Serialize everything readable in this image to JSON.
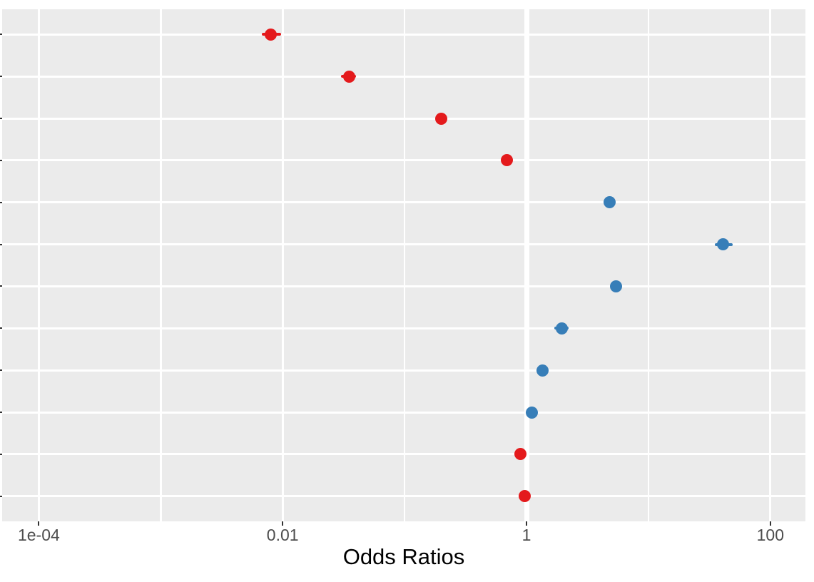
{
  "chart_data": {
    "type": "scatter",
    "subtype": "forest-plot-odds-ratios",
    "title": "",
    "xlabel": "Odds Ratios",
    "ylabel": "",
    "x_scale": "log10",
    "x_range": [
      5e-05,
      190
    ],
    "x_tick_values": [
      0.0001,
      0.01,
      1,
      100
    ],
    "x_tick_labels": [
      "1e-04",
      "0.01",
      "1",
      "100"
    ],
    "x_minor_gridline_values": [
      0.001,
      0.1,
      10
    ],
    "reference_line_x": 1,
    "grid": "on",
    "legend_position": "none",
    "y_axis_labels_visible": false,
    "y_tick_count": 12,
    "points": [
      {
        "row": 1,
        "estimate": 0.008,
        "ci_low": 0.0067,
        "ci_high": 0.0097,
        "group": "red"
      },
      {
        "row": 2,
        "estimate": 0.035,
        "ci_low": 0.03,
        "ci_high": 0.04,
        "group": "red"
      },
      {
        "row": 3,
        "estimate": 0.2,
        "ci_low": null,
        "ci_high": null,
        "group": "red"
      },
      {
        "row": 4,
        "estimate": 0.69,
        "ci_low": null,
        "ci_high": null,
        "group": "red"
      },
      {
        "row": 5,
        "estimate": 4.8,
        "ci_low": null,
        "ci_high": null,
        "group": "blue"
      },
      {
        "row": 6,
        "estimate": 41,
        "ci_low": 35,
        "ci_high": 49,
        "group": "blue"
      },
      {
        "row": 7,
        "estimate": 5.4,
        "ci_low": null,
        "ci_high": null,
        "group": "blue"
      },
      {
        "row": 8,
        "estimate": 1.94,
        "ci_low": 1.7,
        "ci_high": 2.21,
        "group": "blue"
      },
      {
        "row": 9,
        "estimate": 1.36,
        "ci_low": null,
        "ci_high": null,
        "group": "blue"
      },
      {
        "row": 10,
        "estimate": 1.1,
        "ci_low": null,
        "ci_high": null,
        "group": "blue"
      },
      {
        "row": 11,
        "estimate": 0.89,
        "ci_low": null,
        "ci_high": null,
        "group": "red"
      },
      {
        "row": 12,
        "estimate": 0.96,
        "ci_low": null,
        "ci_high": null,
        "group": "red"
      }
    ]
  },
  "colors": {
    "red": "#E41A1C",
    "blue": "#377EB8",
    "panel_background": "#EBEBEB",
    "gridline": "#FFFFFF",
    "tick_mark": "#333333",
    "tick_label": "#4D4D4D",
    "axis_title": "#000000",
    "page_background": "#FFFFFF"
  }
}
